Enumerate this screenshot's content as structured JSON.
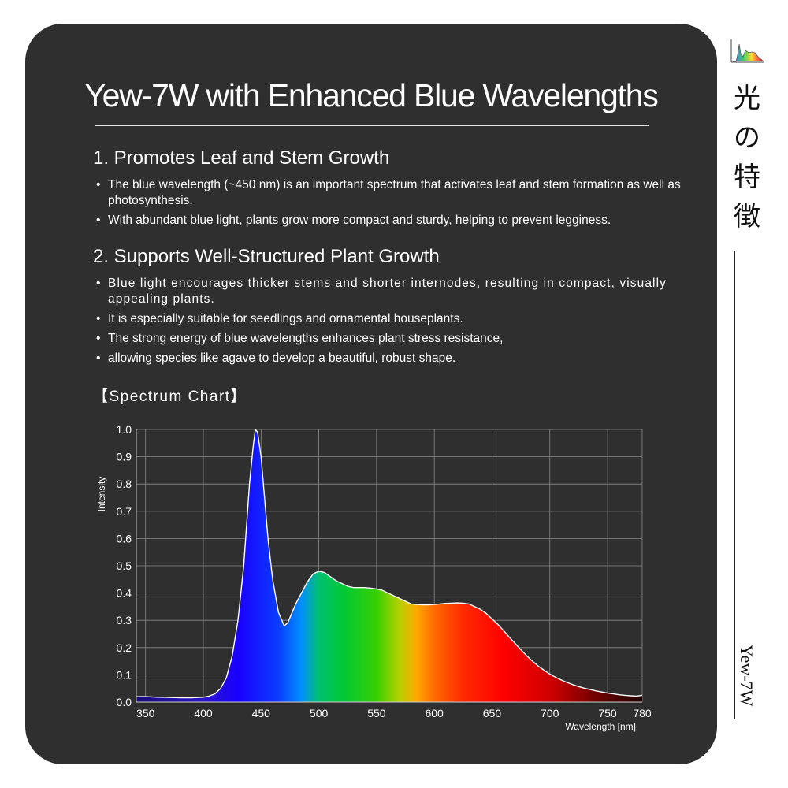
{
  "title": "Yew-7W with Enhanced Blue Wavelengths",
  "section1": {
    "heading": "1. Promotes Leaf and Stem Growth",
    "bullets": [
      "The blue wavelength (~450 nm) is an important spectrum that activates leaf and stem formation as well as photosynthesis.",
      "With abundant blue light, plants grow more compact and sturdy, helping to prevent legginess."
    ]
  },
  "section2": {
    "heading": "2. Supports Well-Structured Plant Growth",
    "bullets": [
      "Blue light encourages thicker stems and shorter internodes, resulting in compact, visually appealing plants.",
      "It is especially suitable for seedlings and ornamental houseplants.",
      "The strong energy of blue wavelengths enhances plant stress resistance,",
      "allowing species like agave to develop a beautiful, robust shape."
    ]
  },
  "chart_heading": "【Spectrum Chart】",
  "side": {
    "kanji": [
      "光",
      "の",
      "特",
      "徴"
    ],
    "model": "Yew-7W",
    "icon": "spectrum-icon"
  },
  "colors": {
    "card": "#2f2f2f",
    "text": "#ffffff",
    "curve": "#ffffff",
    "grid": "#8a8a8a"
  },
  "chart_data": {
    "type": "area",
    "title": "",
    "xlabel": "Wavelength [nm]",
    "ylabel": "Intensity",
    "xlim": [
      342,
      780
    ],
    "ylim": [
      0,
      1.0
    ],
    "grid": true,
    "x_ticks": [
      350,
      400,
      450,
      500,
      550,
      600,
      650,
      700,
      750,
      780
    ],
    "y_ticks": [
      "0.0",
      "0.1",
      "0.2",
      "0.3",
      "0.4",
      "0.5",
      "0.6",
      "0.7",
      "0.8",
      "0.9",
      "1.0"
    ],
    "x": [
      342,
      350,
      360,
      370,
      380,
      390,
      400,
      405,
      410,
      415,
      420,
      425,
      430,
      435,
      438,
      440,
      443,
      445,
      447,
      450,
      453,
      456,
      460,
      465,
      470,
      473,
      476,
      480,
      485,
      490,
      495,
      500,
      505,
      510,
      515,
      520,
      525,
      530,
      535,
      540,
      545,
      550,
      555,
      560,
      565,
      570,
      575,
      580,
      585,
      590,
      595,
      600,
      605,
      610,
      615,
      620,
      625,
      630,
      635,
      640,
      645,
      650,
      655,
      660,
      665,
      670,
      675,
      680,
      685,
      690,
      695,
      700,
      705,
      710,
      715,
      720,
      725,
      730,
      735,
      740,
      745,
      750,
      755,
      760,
      765,
      770,
      775,
      780
    ],
    "y": [
      0.02,
      0.02,
      0.018,
      0.017,
      0.016,
      0.016,
      0.018,
      0.022,
      0.03,
      0.05,
      0.09,
      0.17,
      0.3,
      0.5,
      0.68,
      0.8,
      0.93,
      1.0,
      0.99,
      0.9,
      0.75,
      0.6,
      0.45,
      0.33,
      0.28,
      0.29,
      0.32,
      0.36,
      0.4,
      0.44,
      0.47,
      0.48,
      0.475,
      0.46,
      0.445,
      0.435,
      0.425,
      0.42,
      0.42,
      0.42,
      0.418,
      0.415,
      0.41,
      0.4,
      0.39,
      0.38,
      0.37,
      0.36,
      0.358,
      0.357,
      0.357,
      0.358,
      0.36,
      0.362,
      0.363,
      0.364,
      0.363,
      0.36,
      0.35,
      0.34,
      0.325,
      0.305,
      0.285,
      0.262,
      0.238,
      0.215,
      0.192,
      0.17,
      0.15,
      0.132,
      0.117,
      0.103,
      0.091,
      0.081,
      0.072,
      0.064,
      0.057,
      0.051,
      0.046,
      0.041,
      0.037,
      0.033,
      0.03,
      0.027,
      0.025,
      0.023,
      0.022,
      0.025
    ]
  }
}
